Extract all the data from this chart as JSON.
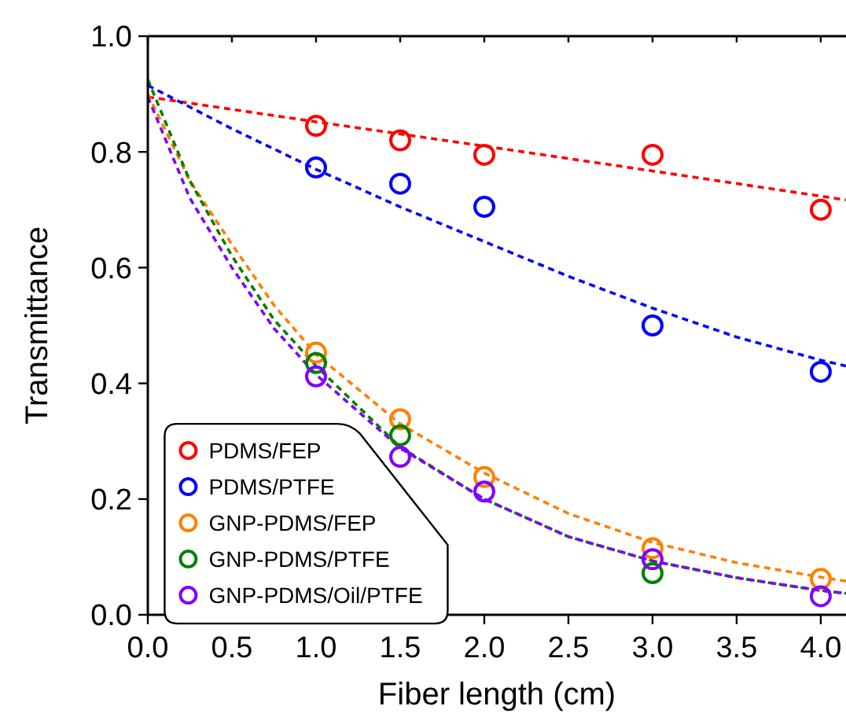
{
  "chart_data": {
    "type": "scatter",
    "xlabel": "Fiber length (cm)",
    "ylabel": "Transmittance",
    "xlim": [
      0,
      4.15
    ],
    "ylim": [
      0,
      1
    ],
    "xticks": [
      {
        "value": 0,
        "label": "0.0"
      },
      {
        "value": 0.5,
        "label": "0.5"
      },
      {
        "value": 1,
        "label": "1.0"
      },
      {
        "value": 1.5,
        "label": "1.5"
      },
      {
        "value": 2,
        "label": "2.0"
      },
      {
        "value": 2.5,
        "label": "2.5"
      },
      {
        "value": 3,
        "label": "3.0"
      },
      {
        "value": 3.5,
        "label": "3.5"
      },
      {
        "value": 4,
        "label": "4.0"
      }
    ],
    "yticks": [
      {
        "value": 0,
        "label": "0.0"
      },
      {
        "value": 0.2,
        "label": "0.2"
      },
      {
        "value": 0.4,
        "label": "0.4"
      },
      {
        "value": 0.6,
        "label": "0.6"
      },
      {
        "value": 0.8,
        "label": "0.8"
      },
      {
        "value": 1,
        "label": "1.0"
      }
    ],
    "x": [
      1,
      1.5,
      2,
      3,
      4
    ],
    "grid": false,
    "legend": "bottom left",
    "marker": "circle",
    "series": [
      {
        "name": "PDMS/FEP",
        "color": "#ff0000",
        "values": [
          0.845,
          0.82,
          0.795,
          0.795,
          0.7
        ]
      },
      {
        "name": "PDMS/PTFE",
        "color": "#0000ff",
        "values": [
          0.773,
          0.745,
          0.705,
          0.5,
          0.42
        ]
      },
      {
        "name": "GNP-PDMS/FEP",
        "color": "#ff8000",
        "values": [
          0.453,
          0.338,
          0.238,
          0.115,
          0.062
        ]
      },
      {
        "name": "GNP-PDMS/PTFE",
        "color": "#008000",
        "values": [
          0.435,
          0.31,
          null,
          0.072,
          null
        ]
      },
      {
        "name": "GNP-PDMS/Oil/PTFE",
        "color": "#8000ff",
        "values": [
          0.412,
          0.273,
          0.213,
          0.096,
          0.032
        ]
      },
      {
        "type": "line",
        "line_style": "dashed",
        "marker": "none",
        "color": "#ff0000",
        "x": [
          0,
          1,
          2,
          3,
          4.15
        ],
        "values": [
          0.895,
          0.852,
          0.81,
          0.767,
          0.717
        ]
      },
      {
        "type": "line",
        "line_style": "dashed",
        "marker": "none",
        "color": "#0000ff",
        "x": [
          0,
          0.5,
          1,
          1.5,
          2,
          2.5,
          3,
          3.5,
          4,
          4.15
        ],
        "values": [
          0.915,
          0.84,
          0.77,
          0.705,
          0.645,
          0.585,
          0.53,
          0.48,
          0.44,
          0.43
        ]
      },
      {
        "type": "line",
        "line_style": "dashed",
        "marker": "none",
        "color": "#ff8000",
        "x": [
          0,
          0.25,
          0.5,
          0.75,
          1,
          1.5,
          2,
          2.5,
          3,
          3.5,
          4,
          4.15
        ],
        "values": [
          0.9,
          0.75,
          0.64,
          0.535,
          0.45,
          0.33,
          0.245,
          0.175,
          0.125,
          0.09,
          0.065,
          0.058
        ]
      },
      {
        "type": "line",
        "line_style": "dashed",
        "marker": "none",
        "color": "#008000",
        "x": [
          0,
          0.25,
          0.5,
          0.75,
          1,
          1.5,
          2,
          2.5,
          3,
          3.5,
          4,
          4.15
        ],
        "values": [
          0.925,
          0.75,
          0.62,
          0.51,
          0.43,
          0.29,
          0.2,
          0.135,
          0.093,
          0.064,
          0.042,
          0.037
        ]
      },
      {
        "type": "line",
        "line_style": "dashed",
        "marker": "none",
        "color": "#8000ff",
        "x": [
          0,
          0.25,
          0.5,
          0.75,
          1,
          1.5,
          2,
          2.5,
          3,
          3.5,
          4,
          4.15
        ],
        "values": [
          0.895,
          0.72,
          0.6,
          0.495,
          0.415,
          0.288,
          0.2,
          0.135,
          0.093,
          0.064,
          0.042,
          0.037
        ]
      }
    ]
  }
}
